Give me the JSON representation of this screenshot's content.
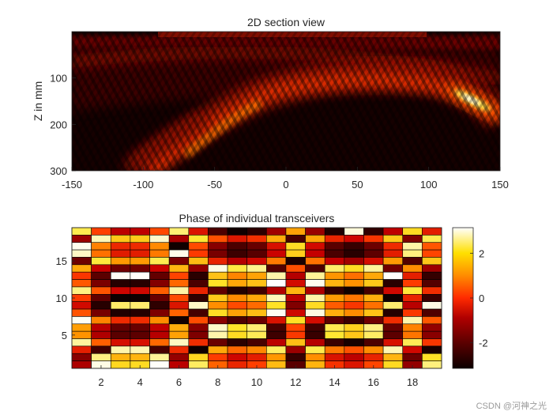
{
  "watermark": "CSDN @河神之光",
  "chart_data": [
    {
      "type": "heatmap",
      "title": "2D section view",
      "xlabel": "",
      "ylabel": "Z in mm",
      "xlim": [
        -150,
        150
      ],
      "ylim": [
        0,
        300
      ],
      "y_reversed": true,
      "x_ticks": [
        -150,
        -100,
        -50,
        0,
        50,
        100,
        150
      ],
      "y_ticks": [
        100,
        200,
        300
      ],
      "colormap": "hot",
      "features": {
        "main_beam": {
          "x_start": -100,
          "z_start": 300,
          "x_end": 150,
          "z_end": 190
        },
        "bright_spot": {
          "x": 130,
          "z": 150
        },
        "upper_arc": {
          "x_start": -150,
          "z_start": 50,
          "x_end": 150,
          "z_end": 100
        }
      }
    },
    {
      "type": "heatmap",
      "title": "Phase of individual transceivers",
      "xlabel": "",
      "ylabel": "",
      "x_ticks": [
        2,
        4,
        6,
        8,
        10,
        12,
        14,
        16,
        18
      ],
      "y_ticks": [
        5,
        10,
        15
      ],
      "xlim": [
        0.5,
        19.5
      ],
      "ylim": [
        0.5,
        19.5
      ],
      "grid_size": [
        19,
        19
      ],
      "colormap": "hot",
      "colorbar": {
        "ticks": [
          2,
          0,
          -2
        ],
        "range": [
          -3.14,
          3.14
        ]
      }
    }
  ],
  "colors": {
    "axis": "#262626",
    "cell_border": "#000000"
  }
}
